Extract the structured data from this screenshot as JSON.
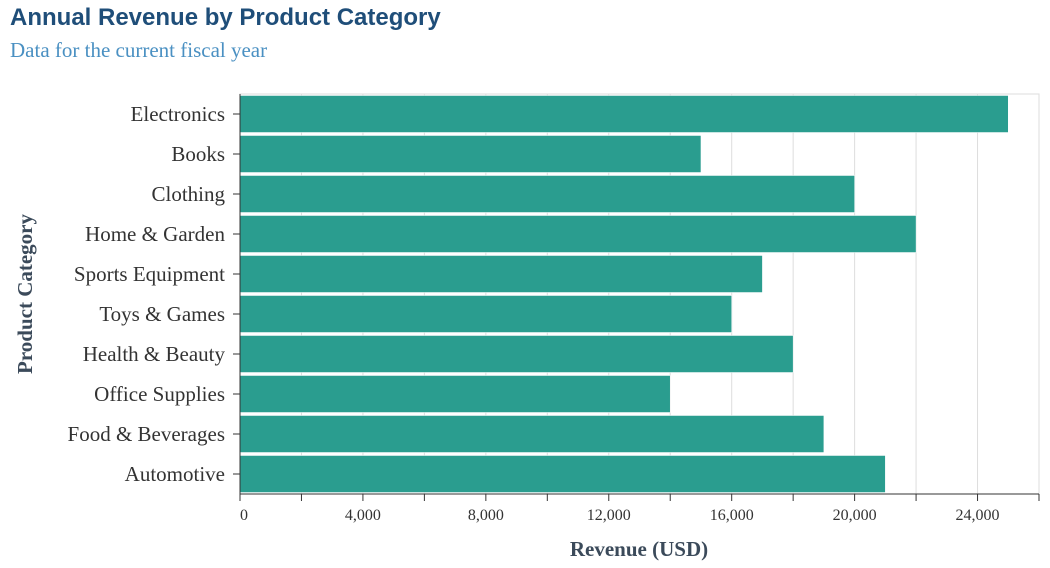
{
  "title": "Annual Revenue by Product Category",
  "subtitle": "Data for the current fiscal year",
  "colors": {
    "bar": "#2a9d8f",
    "grid": "#dddddd",
    "axis": "#333333",
    "title": "#1f4e79",
    "subtitle": "#4a90c2"
  },
  "chart_data": {
    "type": "bar",
    "orientation": "horizontal",
    "title": "Annual Revenue by Product Category",
    "subtitle": "Data for the current fiscal year",
    "xlabel": "Revenue (USD)",
    "ylabel": "Product Category",
    "categories": [
      "Electronics",
      "Books",
      "Clothing",
      "Home & Garden",
      "Sports Equipment",
      "Toys & Games",
      "Health & Beauty",
      "Office Supplies",
      "Food & Beverages",
      "Automotive"
    ],
    "values": [
      25000,
      15000,
      20000,
      22000,
      17000,
      16000,
      18000,
      14000,
      19000,
      21000
    ],
    "xlim": [
      0,
      26000
    ],
    "xticks": [
      0,
      4000,
      8000,
      12000,
      16000,
      20000,
      24000
    ],
    "xtick_labels": [
      "0",
      "4,000",
      "8,000",
      "12,000",
      "16,000",
      "20,000",
      "24,000"
    ],
    "minor_step": 2000,
    "grid": true,
    "legend": "none"
  }
}
